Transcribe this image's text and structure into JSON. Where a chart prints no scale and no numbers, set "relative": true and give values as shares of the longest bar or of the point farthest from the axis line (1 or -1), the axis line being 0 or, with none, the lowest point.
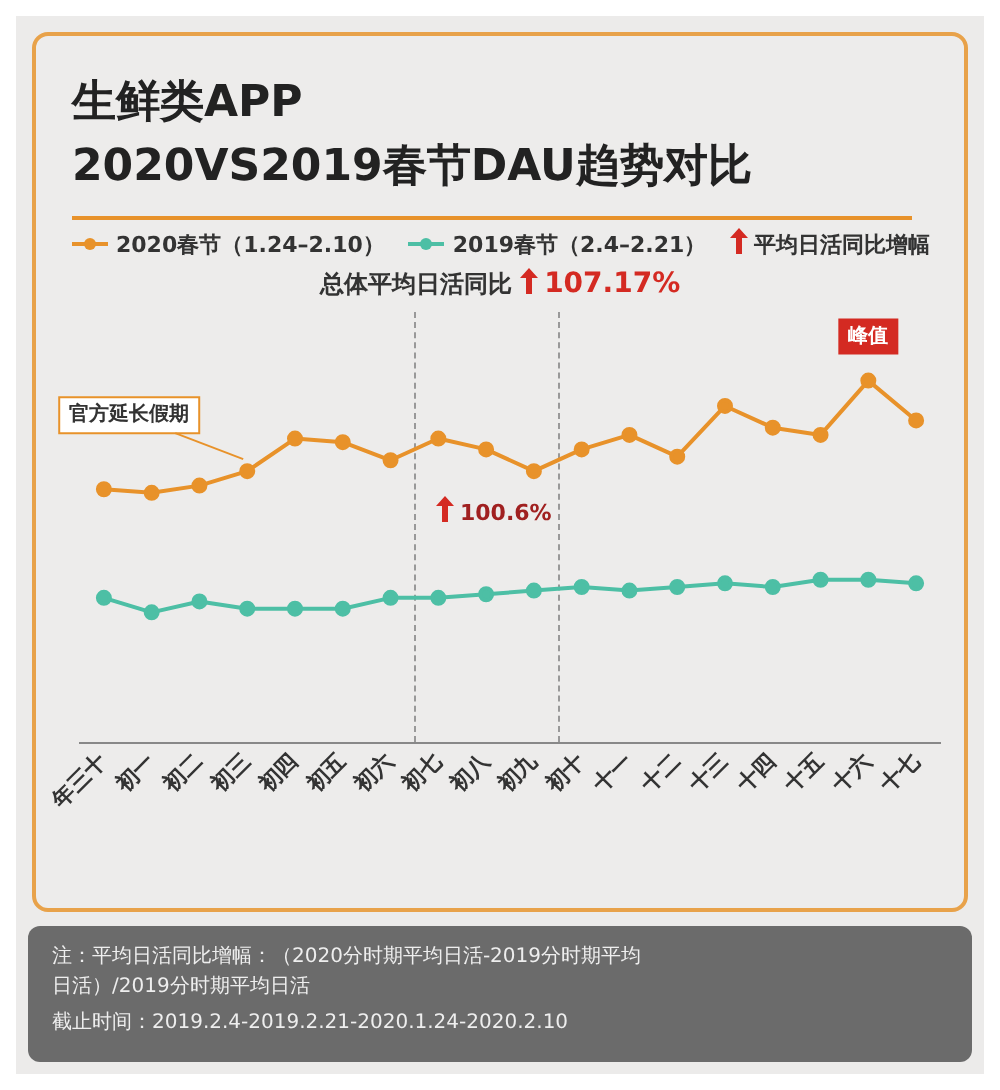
{
  "chart_data": {
    "type": "line",
    "title": "生鲜类APP",
    "subtitle": "2020VS2019春节DAU趋势对比",
    "relative": true,
    "categories": [
      "年三十",
      "初一",
      "初二",
      "初三",
      "初四",
      "初五",
      "初六",
      "初七",
      "初八",
      "初九",
      "初十",
      "十一",
      "十二",
      "十三",
      "十四",
      "十五",
      "十六",
      "十七"
    ],
    "series": [
      {
        "name": "2020春节（1.24–2.10）",
        "color": "#e8922a",
        "values": [
          0.7,
          0.69,
          0.71,
          0.75,
          0.84,
          0.83,
          0.78,
          0.84,
          0.81,
          0.75,
          0.81,
          0.85,
          0.79,
          0.93,
          0.87,
          0.85,
          1.0,
          0.89
        ]
      },
      {
        "name": "2019春节（2.4–2.21）",
        "color": "#4dbfa5",
        "values": [
          0.4,
          0.36,
          0.39,
          0.37,
          0.37,
          0.37,
          0.4,
          0.4,
          0.41,
          0.42,
          0.43,
          0.42,
          0.43,
          0.44,
          0.43,
          0.45,
          0.45,
          0.44
        ]
      }
    ],
    "marker": "circle",
    "grid": false,
    "legend": "top",
    "annotations": [
      "平均日活同比增幅",
      "总体平均日活同比 107.17%",
      "100.6%",
      {
        "text": "官方延长假期",
        "x": "初三",
        "y": 0.75
      },
      {
        "text": "峰值",
        "x": "十六",
        "y": 1.0
      },
      "注：平均日活同比增幅：（2020分时期平均日活-2019分时期平均日活）/2019分时期平均日活",
      "截止时间：2019.2.4-2019.2.21-2020.1.24-2020.2.10"
    ]
  }
}
